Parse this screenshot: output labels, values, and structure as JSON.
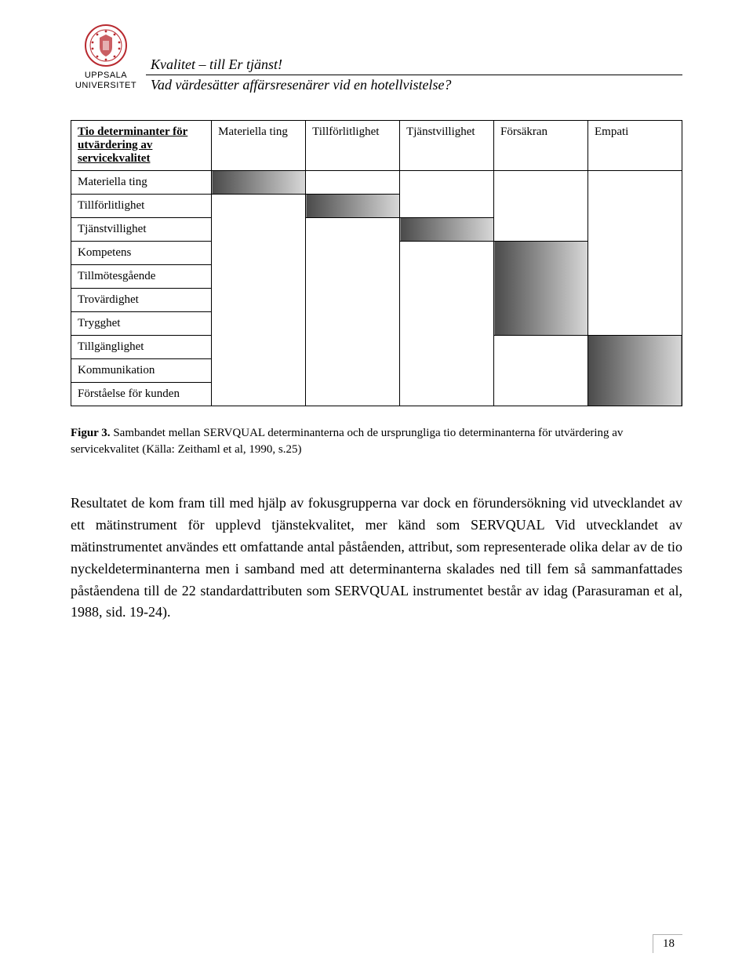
{
  "header": {
    "university_line1": "UPPSALA",
    "university_line2": "UNIVERSITET",
    "title_line1": "Kvalitet – till Er tjänst!",
    "title_line2": "Vad värdesätter affärsresenärer vid en hotellvistelse?",
    "logo_color": "#b8292f"
  },
  "table": {
    "corner": "Tio determinanter för utvärdering av servicekvalitet",
    "columns": [
      "Materiella ting",
      "Tillförlitlighet",
      "Tjänstvillighet",
      "Försäkran",
      "Empati"
    ],
    "rows": [
      {
        "label": "Materiella ting",
        "shaded": [
          true,
          false,
          false,
          false,
          false
        ]
      },
      {
        "label": "Tillförlitlighet",
        "shaded": [
          false,
          true,
          false,
          false,
          false
        ]
      },
      {
        "label": "Tjänstvillighet",
        "shaded": [
          false,
          false,
          true,
          false,
          false
        ]
      },
      {
        "label": "Kompetens",
        "shaded": [
          false,
          false,
          false,
          true,
          false
        ]
      },
      {
        "label": "Tillmötesgående",
        "shaded": [
          false,
          false,
          false,
          true,
          false
        ]
      },
      {
        "label": "Trovärdighet",
        "shaded": [
          false,
          false,
          false,
          true,
          false
        ]
      },
      {
        "label": "Trygghet",
        "shaded": [
          false,
          false,
          false,
          true,
          false
        ]
      },
      {
        "label": "Tillgänglighet",
        "shaded": [
          false,
          false,
          false,
          false,
          true
        ]
      },
      {
        "label": "Kommunikation",
        "shaded": [
          false,
          false,
          false,
          false,
          true
        ]
      },
      {
        "label": "Förståelse för kunden",
        "shaded": [
          false,
          false,
          false,
          false,
          true
        ]
      }
    ]
  },
  "caption": {
    "label": "Figur 3.",
    "text": "Sambandet mellan SERVQUAL determinanterna och de ursprungliga tio determinanterna för utvärdering av servicekvalitet (Källa: Zeithaml et al, 1990, s.25)"
  },
  "body": "Resultatet de kom fram till med hjälp av fokusgrupperna var dock en förundersökning vid utvecklandet av ett mätinstrument för upplevd tjänstekvalitet, mer känd som SERVQUAL Vid utvecklandet av mätinstrumentet användes ett omfattande antal påståenden, attribut, som representerade olika delar av de tio nyckeldeterminanterna men i samband med att determinanterna skalades ned till fem så sammanfattades påståendena till de 22 standardattributen som SERVQUAL instrumentet består av idag (Parasuraman et al, 1988, sid. 19-24).",
  "page_number": "18"
}
